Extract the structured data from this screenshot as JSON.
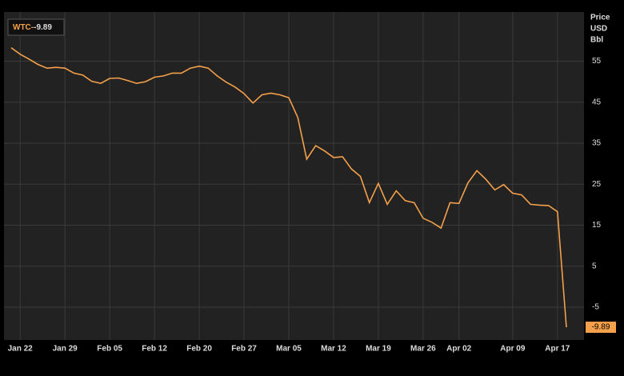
{
  "chart_data": {
    "type": "line",
    "y_label": [
      "Price",
      "USD",
      "Bbl"
    ],
    "categories": [
      null,
      "Jan 22",
      null,
      null,
      null,
      null,
      "Jan 29",
      null,
      null,
      null,
      null,
      "Feb 05",
      null,
      null,
      null,
      null,
      "Feb 12",
      null,
      null,
      null,
      null,
      "Feb 20",
      null,
      null,
      null,
      null,
      "Feb 27",
      null,
      null,
      null,
      null,
      "Mar 05",
      null,
      null,
      null,
      null,
      "Mar 12",
      null,
      null,
      null,
      null,
      "Mar 19",
      null,
      null,
      null,
      null,
      "Mar 26",
      null,
      null,
      null,
      "Apr 02",
      null,
      null,
      null,
      null,
      null,
      "Apr 09",
      null,
      null,
      null,
      null,
      "Apr 17",
      null
    ],
    "series": [
      {
        "name": "WTC-",
        "color": "#f5a04a",
        "values": [
          58.3,
          56.7,
          55.5,
          54.2,
          53.3,
          53.5,
          53.3,
          52.1,
          51.6,
          50.1,
          49.6,
          50.8,
          50.9,
          50.3,
          49.6,
          50.0,
          51.1,
          51.4,
          52.1,
          52.1,
          53.3,
          53.8,
          53.3,
          51.4,
          49.9,
          48.7,
          47.1,
          44.8,
          46.8,
          47.2,
          46.8,
          46.1,
          41.3,
          31.1,
          34.4,
          33.1,
          31.5,
          31.7,
          28.7,
          26.9,
          20.5,
          25.2,
          20.1,
          23.4,
          21.0,
          20.5,
          16.7,
          15.7,
          14.3,
          20.5,
          20.3,
          25.3,
          28.3,
          26.2,
          23.6,
          24.9,
          22.8,
          22.4,
          20.1,
          19.9,
          19.8,
          18.3,
          -9.89
        ]
      }
    ],
    "ylim": [
      -13,
      67
    ],
    "yticks": [
      -5,
      5,
      15,
      25,
      35,
      45,
      55
    ],
    "grid": true
  }
}
